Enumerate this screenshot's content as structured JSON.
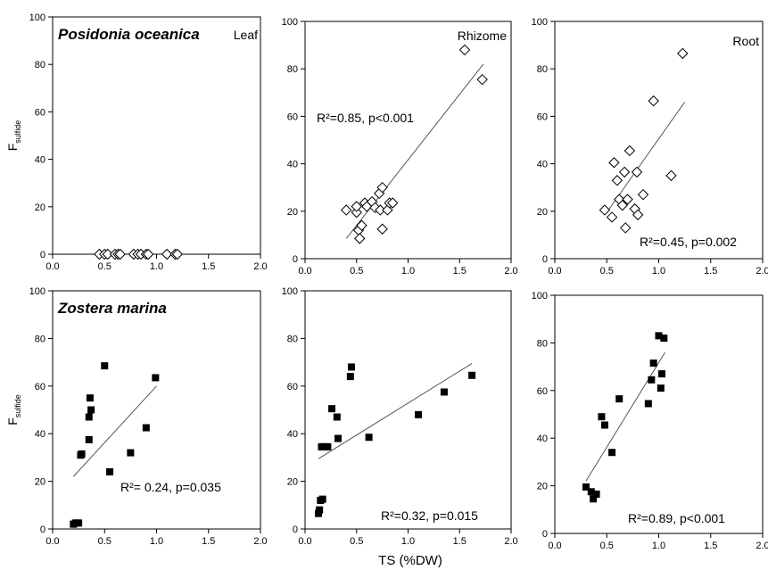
{
  "figure": {
    "xlabel": "TS (%DW)"
  },
  "chart_data": [
    {
      "type": "scatter",
      "panel": "Posidonia-Leaf",
      "species": "Posidonia oceanica",
      "organ": "Leaf",
      "ylabel_main": "F",
      "ylabel_sub": "sulfide",
      "annotation": "",
      "regression": null,
      "marker": "open-diamond",
      "xlim": [
        0,
        2
      ],
      "ylim": [
        0,
        100
      ],
      "xticks": [
        "0.0",
        "0.5",
        "1.0",
        "1.5",
        "2.0"
      ],
      "yticks": [
        "0",
        "20",
        "40",
        "60",
        "80",
        "100"
      ],
      "x": [
        0.45,
        0.5,
        0.53,
        0.6,
        0.63,
        0.65,
        0.78,
        0.82,
        0.85,
        0.9,
        0.92,
        1.1,
        1.18,
        1.2
      ],
      "y": [
        0,
        0,
        0,
        0,
        0,
        0,
        0,
        0,
        0,
        0,
        0,
        0,
        0,
        0
      ]
    },
    {
      "type": "scatter",
      "panel": "Posidonia-Rhizome",
      "species": "",
      "organ": "Rhizome",
      "annotation": "R²=0.85, p<0.001",
      "regression": {
        "x": [
          0.4,
          1.73
        ],
        "y": [
          8.5,
          82
        ]
      },
      "marker": "open-diamond",
      "xlim": [
        0,
        2
      ],
      "ylim": [
        0,
        100
      ],
      "xticks": [
        "0.0",
        "0.5",
        "1.0",
        "1.5",
        "2.0"
      ],
      "yticks": [
        "0",
        "20",
        "40",
        "60",
        "80",
        "100"
      ],
      "x": [
        0.4,
        0.5,
        0.5,
        0.52,
        0.53,
        0.55,
        0.58,
        0.6,
        0.65,
        0.68,
        0.72,
        0.73,
        0.75,
        0.75,
        0.8,
        0.82,
        0.85,
        1.55,
        1.72
      ],
      "y": [
        20.5,
        19.5,
        22,
        12,
        8.5,
        14,
        23.5,
        22,
        24,
        21.5,
        27.5,
        20.5,
        30,
        12.5,
        20.5,
        23.5,
        23.5,
        88,
        75.5
      ]
    },
    {
      "type": "scatter",
      "panel": "Posidonia-Root",
      "species": "",
      "organ": "Root",
      "annotation": "R²=0.45, p=0.002",
      "regression": {
        "x": [
          0.5,
          1.25
        ],
        "y": [
          19.5,
          66
        ]
      },
      "marker": "open-diamond",
      "xlim": [
        0,
        2
      ],
      "ylim": [
        0,
        100
      ],
      "xticks": [
        "0.0",
        "0.5",
        "1.0",
        "1.5",
        "2.0"
      ],
      "yticks": [
        "0",
        "20",
        "40",
        "60",
        "80",
        "100"
      ],
      "x": [
        0.48,
        0.55,
        0.57,
        0.6,
        0.62,
        0.65,
        0.67,
        0.68,
        0.7,
        0.72,
        0.77,
        0.79,
        0.8,
        0.85,
        0.95,
        1.12,
        1.23
      ],
      "y": [
        20.5,
        17.5,
        40.5,
        33,
        25,
        22.5,
        36.5,
        13,
        25,
        45.5,
        21,
        36.5,
        18.5,
        27,
        66.5,
        35,
        86.5
      ]
    },
    {
      "type": "scatter",
      "panel": "Zostera-Leaf",
      "species": "Zostera marina",
      "organ": "",
      "ylabel_main": "F",
      "ylabel_sub": "sulfide",
      "annotation": "R²= 0.24, p=0.035",
      "regression": {
        "x": [
          0.2,
          1.0
        ],
        "y": [
          22,
          60
        ]
      },
      "marker": "filled-square",
      "xlim": [
        0,
        2
      ],
      "ylim": [
        0,
        100
      ],
      "xticks": [
        "0.0",
        "0.5",
        "1.0",
        "1.5",
        "2.0"
      ],
      "yticks": [
        "0",
        "20",
        "40",
        "60",
        "80",
        "100"
      ],
      "x": [
        0.2,
        0.22,
        0.25,
        0.27,
        0.28,
        0.35,
        0.35,
        0.36,
        0.37,
        0.5,
        0.55,
        0.75,
        0.9,
        0.99
      ],
      "y": [
        2,
        2.5,
        2.5,
        31,
        31.5,
        37.5,
        47,
        55,
        50,
        68.5,
        24,
        32,
        42.5,
        63.5
      ]
    },
    {
      "type": "scatter",
      "panel": "Zostera-Rhizome",
      "species": "",
      "organ": "",
      "annotation": "R²=0.32, p=0.015",
      "regression": {
        "x": [
          0.13,
          1.62
        ],
        "y": [
          29.5,
          69.5
        ]
      },
      "marker": "filled-square",
      "xlim": [
        0,
        2
      ],
      "ylim": [
        0,
        100
      ],
      "xticks": [
        "0.0",
        "0.5",
        "1.0",
        "1.5",
        "2.0"
      ],
      "yticks": [
        "0",
        "20",
        "40",
        "60",
        "80",
        "100"
      ],
      "x": [
        0.13,
        0.14,
        0.15,
        0.16,
        0.17,
        0.18,
        0.2,
        0.22,
        0.26,
        0.31,
        0.32,
        0.44,
        0.45,
        0.62,
        1.1,
        1.35,
        1.62
      ],
      "y": [
        6.5,
        8,
        12,
        34.5,
        12.5,
        34.5,
        34.5,
        34.5,
        50.5,
        47,
        38,
        64,
        68,
        38.5,
        48,
        57.5,
        64.5
      ]
    },
    {
      "type": "scatter",
      "panel": "Zostera-Root",
      "species": "",
      "organ": "",
      "annotation": "R²=0.89, p<0.001",
      "regression": {
        "x": [
          0.3,
          1.06
        ],
        "y": [
          22,
          76
        ]
      },
      "marker": "filled-square",
      "xlim": [
        0,
        2
      ],
      "ylim": [
        0,
        100
      ],
      "xticks": [
        "0.0",
        "0.5",
        "1.0",
        "1.5",
        "2.0"
      ],
      "yticks": [
        "0",
        "20",
        "40",
        "60",
        "80",
        "100"
      ],
      "x": [
        0.3,
        0.35,
        0.37,
        0.4,
        0.45,
        0.48,
        0.55,
        0.62,
        0.9,
        0.93,
        0.95,
        1.0,
        1.02,
        1.03,
        1.05
      ],
      "y": [
        19.5,
        17.5,
        14.5,
        16.5,
        49,
        45.5,
        34,
        56.5,
        54.5,
        64.5,
        71.5,
        83,
        61,
        67,
        82
      ]
    }
  ]
}
